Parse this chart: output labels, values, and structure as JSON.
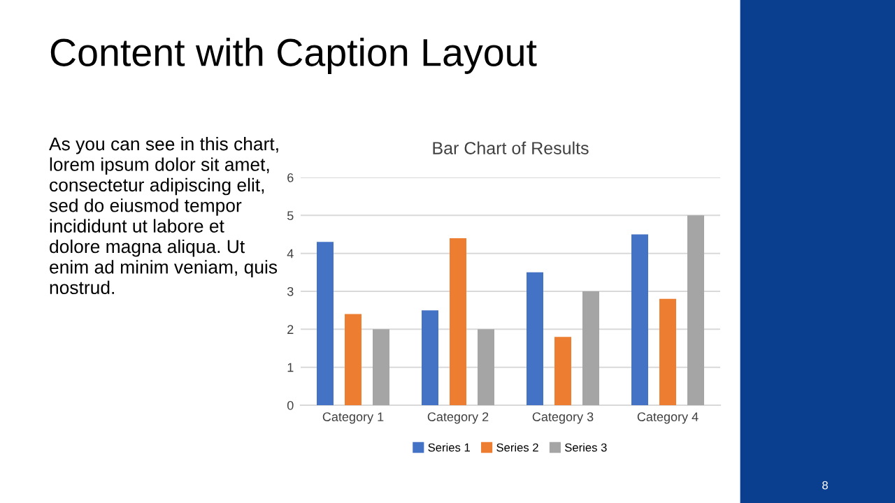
{
  "chart_data": {
    "type": "bar",
    "title": "Bar Chart of Results",
    "categories": [
      "Category 1",
      "Category 2",
      "Category 3",
      "Category 4"
    ],
    "series": [
      {
        "name": "Series 1",
        "color": "#4472c4",
        "values": [
          4.3,
          2.5,
          3.5,
          4.5
        ]
      },
      {
        "name": "Series 2",
        "color": "#ed7d31",
        "values": [
          2.4,
          4.4,
          1.8,
          2.8
        ]
      },
      {
        "name": "Series 3",
        "color": "#a5a5a5",
        "values": [
          2,
          2,
          3,
          5
        ]
      }
    ],
    "ylim": [
      0,
      6
    ],
    "yticks": [
      0,
      1,
      2,
      3,
      4,
      5,
      6
    ],
    "grid": "y",
    "legend": "bottom",
    "annotations": [
      "Content with Caption Layout",
      "As you can see in this chart,\nlorem ipsum dolor sit amet,\nconsectetur adipiscing elit,\nsed do eiusmod tempor\nincididunt ut labore et\ndolore magna aliqua. Ut\nenim ad minim veniam, quis\nnostrud.",
      "8"
    ]
  }
}
